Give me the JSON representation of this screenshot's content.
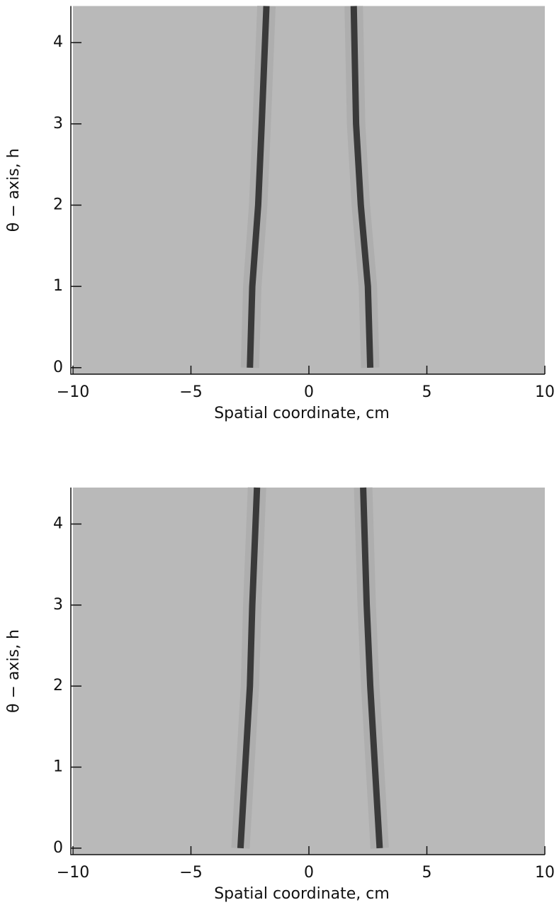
{
  "chart_data": [
    {
      "type": "band",
      "xlabel": "Spatial coordinate, cm",
      "ylabel": "θ − axis, h",
      "background": "#b9b9b9",
      "series": [
        {
          "color": "#3a3a3a",
          "x": [
            -2.5,
            -2.4,
            -2.15,
            -2.0,
            -1.8
          ],
          "y": [
            0,
            1,
            2,
            3,
            4.45
          ]
        },
        {
          "color": "#3a3a3a",
          "x": [
            2.6,
            2.5,
            2.2,
            2.0,
            1.9
          ],
          "y": [
            0,
            1,
            2,
            3,
            4.45
          ]
        }
      ],
      "xlim": [
        -10,
        10
      ],
      "ylim": [
        -0.08,
        4.45
      ],
      "xticks": [
        {
          "value": -10,
          "label": "−10"
        },
        {
          "value": -5,
          "label": "−5"
        },
        0,
        5,
        10
      ],
      "yticks": [
        0,
        1,
        2,
        3,
        4
      ]
    },
    {
      "type": "band",
      "xlabel": "Spatial coordinate, cm",
      "ylabel": "θ − axis, h",
      "background": "#b9b9b9",
      "series": [
        {
          "color": "#3a3a3a",
          "x": [
            -2.9,
            -2.7,
            -2.5,
            -2.4,
            -2.2
          ],
          "y": [
            0,
            1,
            2,
            3,
            4.45
          ]
        },
        {
          "color": "#3a3a3a",
          "x": [
            3.0,
            2.8,
            2.6,
            2.45,
            2.3
          ],
          "y": [
            0,
            1,
            2,
            3,
            4.45
          ]
        }
      ],
      "xlim": [
        -10,
        10
      ],
      "ylim": [
        -0.08,
        4.45
      ],
      "xticks": [
        {
          "value": -10,
          "label": "−10"
        },
        {
          "value": -5,
          "label": "−5"
        },
        0,
        5,
        10
      ],
      "yticks": [
        0,
        1,
        2,
        3,
        4
      ]
    }
  ]
}
